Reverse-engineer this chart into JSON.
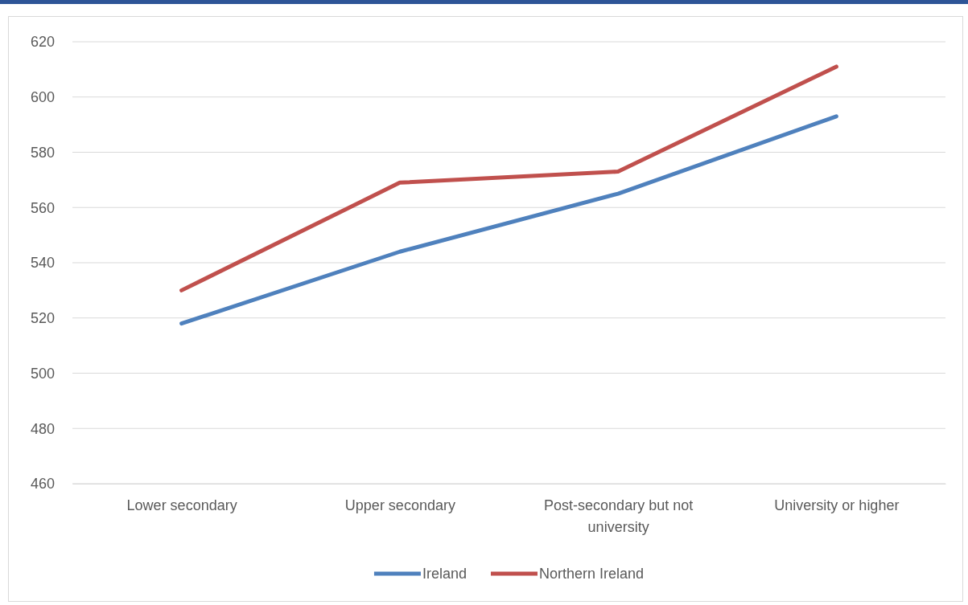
{
  "chart_data": {
    "type": "line",
    "categories": [
      "Lower secondary",
      "Upper secondary",
      "Post-secondary but not university",
      "University or higher"
    ],
    "series": [
      {
        "name": "Ireland",
        "color": "#4f81bd",
        "values": [
          518,
          544,
          565,
          593
        ]
      },
      {
        "name": "Northern Ireland",
        "color": "#c0504d",
        "values": [
          530,
          569,
          573,
          611
        ]
      }
    ],
    "ylim": [
      460,
      620
    ],
    "yticks": [
      460,
      480,
      500,
      520,
      540,
      560,
      580,
      600,
      620
    ],
    "grid": "y",
    "legend": "bottom",
    "marker": "none",
    "line_style": "solid"
  }
}
